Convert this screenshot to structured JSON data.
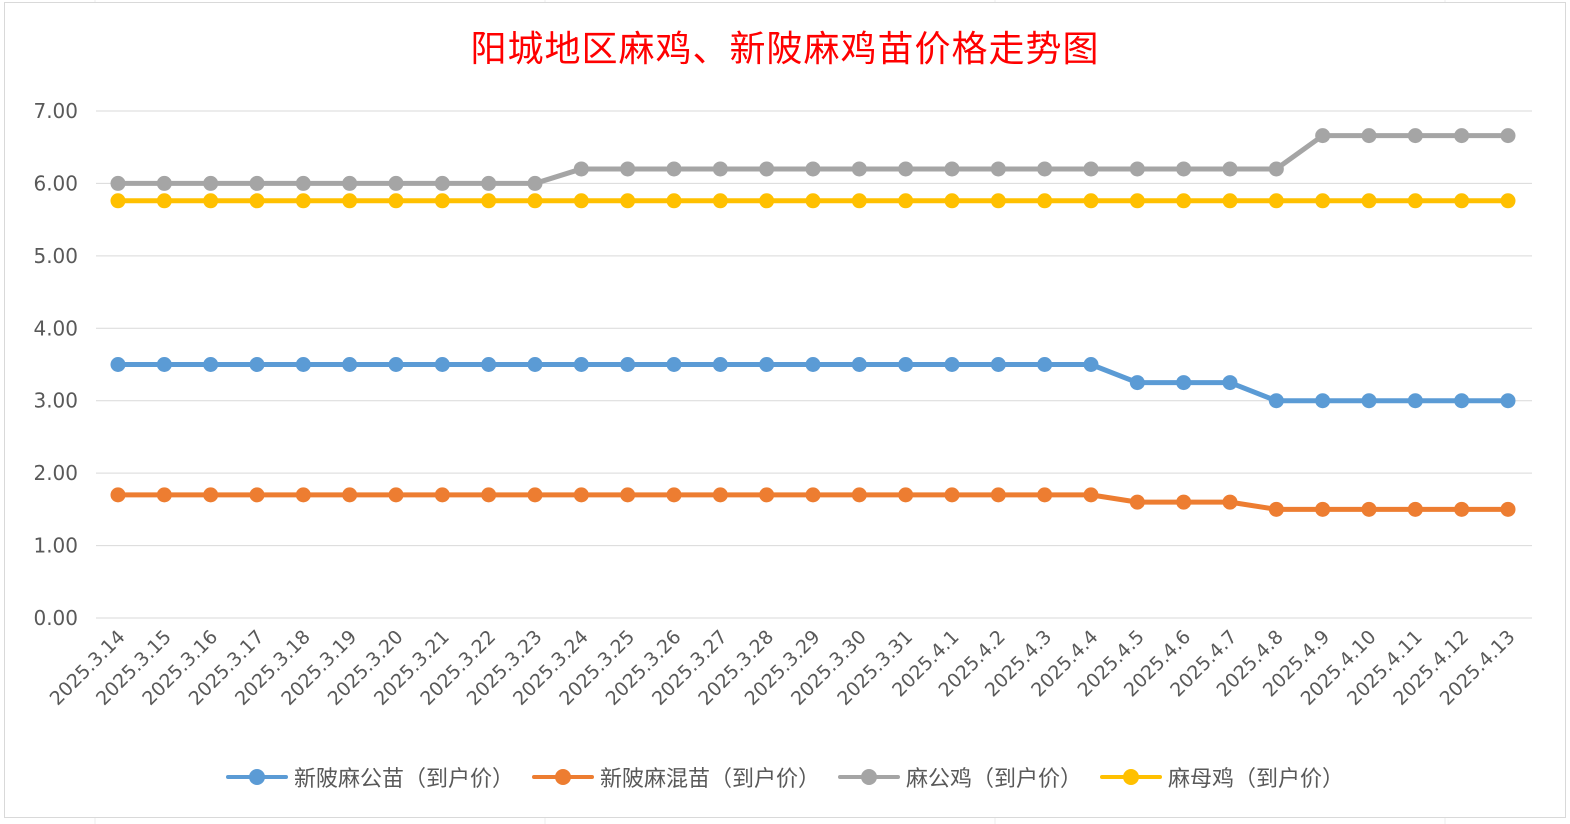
{
  "chart_data": {
    "type": "line",
    "title": "阳城地区麻鸡、新陂麻鸡苗价格走势图",
    "xlabel": "",
    "ylabel": "",
    "ylim": [
      0,
      7
    ],
    "ytick_values": [
      0,
      1,
      2,
      3,
      4,
      5,
      6,
      7
    ],
    "ytick_labels": [
      "0.00",
      "1.00",
      "2.00",
      "3.00",
      "4.00",
      "5.00",
      "6.00",
      "7.00"
    ],
    "grid": "horizontal",
    "legend_position": "bottom",
    "categories": [
      "2025.3.14",
      "2025.3.15",
      "2025.3.16",
      "2025.3.17",
      "2025.3.18",
      "2025.3.19",
      "2025.3.20",
      "2025.3.21",
      "2025.3.22",
      "2025.3.23",
      "2025.3.24",
      "2025.3.25",
      "2025.3.26",
      "2025.3.27",
      "2025.3.28",
      "2025.3.29",
      "2025.3.30",
      "2025.3.31",
      "2025.4.1",
      "2025.4.2",
      "2025.4.3",
      "2025.4.4",
      "2025.4.5",
      "2025.4.6",
      "2025.4.7",
      "2025.4.8",
      "2025.4.9",
      "2025.4.10",
      "2025.4.11",
      "2025.4.12",
      "2025.4.13"
    ],
    "series": [
      {
        "name": "新陂麻公苗（到户价）",
        "color": "#5b9bd5",
        "values": [
          3.5,
          3.5,
          3.5,
          3.5,
          3.5,
          3.5,
          3.5,
          3.5,
          3.5,
          3.5,
          3.5,
          3.5,
          3.5,
          3.5,
          3.5,
          3.5,
          3.5,
          3.5,
          3.5,
          3.5,
          3.5,
          3.5,
          3.25,
          3.25,
          3.25,
          3.0,
          3.0,
          3.0,
          3.0,
          3.0,
          3.0
        ]
      },
      {
        "name": "新陂麻混苗（到户价）",
        "color": "#ed7d31",
        "values": [
          1.7,
          1.7,
          1.7,
          1.7,
          1.7,
          1.7,
          1.7,
          1.7,
          1.7,
          1.7,
          1.7,
          1.7,
          1.7,
          1.7,
          1.7,
          1.7,
          1.7,
          1.7,
          1.7,
          1.7,
          1.7,
          1.7,
          1.6,
          1.6,
          1.6,
          1.5,
          1.5,
          1.5,
          1.5,
          1.5,
          1.5
        ]
      },
      {
        "name": "麻公鸡（到户价）",
        "color": "#a5a5a5",
        "values": [
          6.0,
          6.0,
          6.0,
          6.0,
          6.0,
          6.0,
          6.0,
          6.0,
          6.0,
          6.0,
          6.2,
          6.2,
          6.2,
          6.2,
          6.2,
          6.2,
          6.2,
          6.2,
          6.2,
          6.2,
          6.2,
          6.2,
          6.2,
          6.2,
          6.2,
          6.2,
          6.66,
          6.66,
          6.66,
          6.66,
          6.66
        ]
      },
      {
        "name": "麻母鸡（到户价）",
        "color": "#ffc000",
        "values": [
          5.76,
          5.76,
          5.76,
          5.76,
          5.76,
          5.76,
          5.76,
          5.76,
          5.76,
          5.76,
          5.76,
          5.76,
          5.76,
          5.76,
          5.76,
          5.76,
          5.76,
          5.76,
          5.76,
          5.76,
          5.76,
          5.76,
          5.76,
          5.76,
          5.76,
          5.76,
          5.76,
          5.76,
          5.76,
          5.76,
          5.76
        ]
      }
    ]
  },
  "style": {
    "title_color": "#ff0000",
    "axis_text_color": "#595959",
    "gridline_color": "#d9d9d9"
  }
}
